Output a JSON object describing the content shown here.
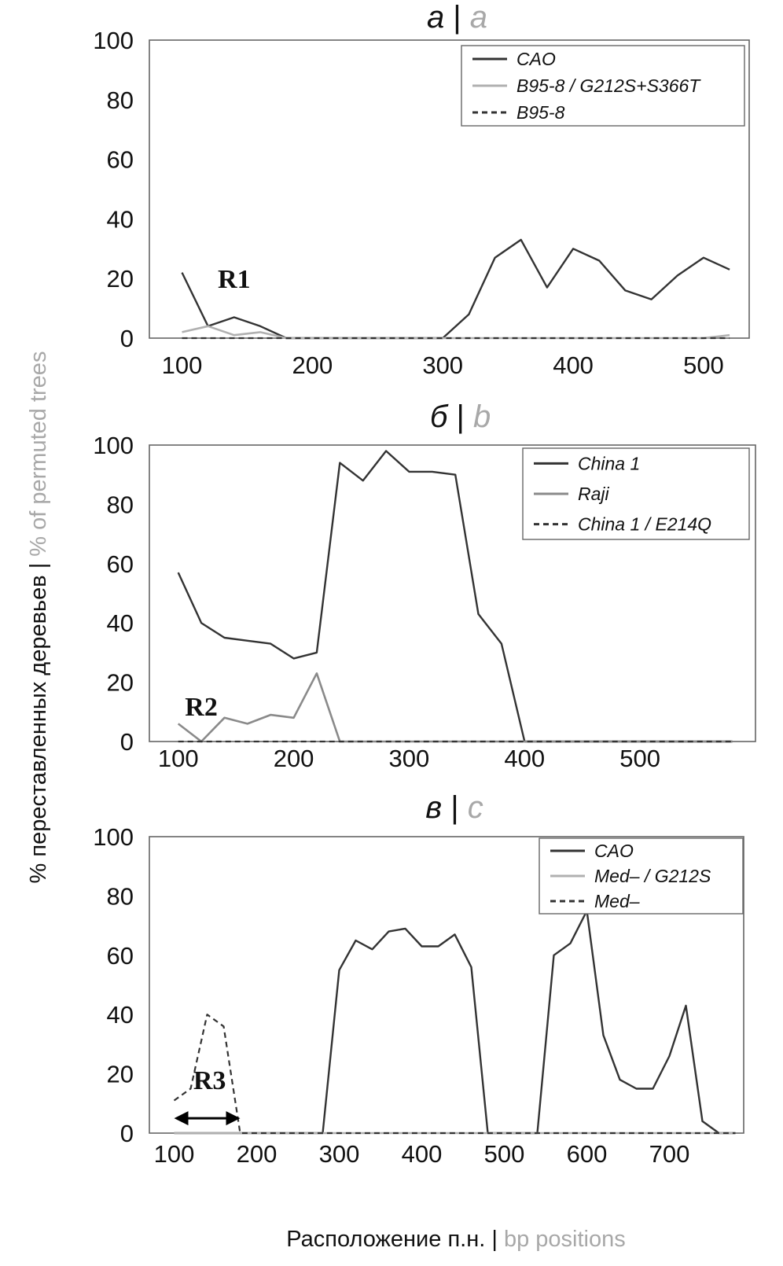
{
  "colors": {
    "dark": "#333333",
    "light": "#b0b0b0",
    "mid": "#8a8a8a",
    "frame": "#666666",
    "text": "#111111",
    "grey_text": "#a8a8a8"
  },
  "figure": {
    "y_label_ru": "% переставленных деревьев",
    "y_label_sep": " | ",
    "y_label_en": "% of permuted trees",
    "x_label_ru": "Расположение п.н.",
    "x_label_sep": " | ",
    "x_label_en": "bp positions"
  },
  "chart_data": [
    {
      "type": "line",
      "title_ru": "а",
      "title_sep": "|",
      "title_en": "a",
      "xlim": [
        75,
        535
      ],
      "ylim": [
        0,
        100
      ],
      "xticks": [
        100,
        200,
        300,
        400,
        500
      ],
      "yticks": [
        0,
        20,
        40,
        60,
        80,
        100
      ],
      "legend_position": "top-right",
      "annotation": {
        "text": "R1",
        "x": 140,
        "y": 20
      },
      "series": [
        {
          "name": "CAO",
          "style": "solid-dark",
          "x": [
            100,
            120,
            140,
            160,
            180,
            200,
            220,
            240,
            260,
            280,
            300,
            320,
            340,
            360,
            380,
            400,
            420,
            440,
            460,
            480,
            500,
            520
          ],
          "y": [
            22,
            4,
            7,
            4,
            0,
            0,
            0,
            0,
            0,
            0,
            0,
            8,
            27,
            33,
            17,
            30,
            26,
            16,
            13,
            21,
            27,
            23
          ]
        },
        {
          "name": "B95-8 / G212S+S366T",
          "style": "solid-light",
          "x": [
            100,
            120,
            140,
            160,
            180,
            200,
            300,
            400,
            500,
            520
          ],
          "y": [
            2,
            4,
            1,
            2,
            0,
            0,
            0,
            0,
            0,
            1
          ]
        },
        {
          "name": "B95-8",
          "style": "dashed-dark",
          "x": [
            100,
            520
          ],
          "y": [
            0,
            0
          ]
        }
      ]
    },
    {
      "type": "line",
      "title_ru": "б",
      "title_sep": "|",
      "title_en": "b",
      "xlim": [
        75,
        600
      ],
      "ylim": [
        0,
        100
      ],
      "xticks": [
        100,
        200,
        300,
        400,
        500
      ],
      "yticks": [
        0,
        20,
        40,
        60,
        80,
        100
      ],
      "legend_position": "top-right",
      "annotation": {
        "text": "R2",
        "x": 120,
        "y": 12
      },
      "series": [
        {
          "name": "China 1",
          "style": "solid-dark",
          "x": [
            100,
            120,
            140,
            160,
            180,
            200,
            220,
            240,
            260,
            280,
            300,
            320,
            340,
            360,
            380,
            400,
            420,
            440,
            460,
            480,
            500,
            520,
            540,
            560,
            580
          ],
          "y": [
            57,
            40,
            35,
            34,
            33,
            28,
            30,
            94,
            88,
            98,
            91,
            91,
            90,
            43,
            33,
            0,
            0,
            0,
            0,
            0,
            0,
            0,
            0,
            0,
            0
          ]
        },
        {
          "name": "Raji",
          "style": "solid-mid",
          "x": [
            100,
            120,
            140,
            160,
            180,
            200,
            220,
            240,
            260,
            580
          ],
          "y": [
            6,
            0,
            8,
            6,
            9,
            8,
            23,
            0,
            0,
            0
          ]
        },
        {
          "name": "China 1 / E214Q",
          "style": "dashed-dark",
          "x": [
            100,
            580
          ],
          "y": [
            0,
            0
          ]
        }
      ]
    },
    {
      "type": "line",
      "title_ru": "в",
      "title_sep": "|",
      "title_en": "c",
      "xlim": [
        70,
        790
      ],
      "ylim": [
        0,
        100
      ],
      "xticks": [
        100,
        200,
        300,
        400,
        500,
        600,
        700
      ],
      "yticks": [
        0,
        20,
        40,
        60,
        80,
        100
      ],
      "legend_position": "top-right",
      "annotation": {
        "text": "R3",
        "x": 143,
        "y": 18,
        "arrow_from": 100,
        "arrow_to": 180,
        "arrow_y": 5
      },
      "series": [
        {
          "name": "CAO",
          "style": "solid-dark",
          "x": [
            100,
            180,
            280,
            300,
            320,
            340,
            360,
            380,
            400,
            420,
            440,
            460,
            480,
            540,
            560,
            580,
            600,
            620,
            640,
            660,
            680,
            700,
            720,
            740,
            760,
            780
          ],
          "y": [
            0,
            0,
            0,
            55,
            65,
            62,
            68,
            69,
            63,
            63,
            67,
            56,
            0,
            0,
            60,
            64,
            75,
            33,
            18,
            15,
            15,
            26,
            43,
            4,
            0,
            0
          ]
        },
        {
          "name": "Med– / G212S",
          "style": "solid-light",
          "x": [
            100,
            780
          ],
          "y": [
            0,
            0
          ]
        },
        {
          "name": "Med–",
          "style": "dashed-dark",
          "x": [
            100,
            120,
            140,
            160,
            180,
            200,
            780
          ],
          "y": [
            11,
            15,
            40,
            36,
            0,
            0,
            0
          ]
        }
      ]
    }
  ]
}
